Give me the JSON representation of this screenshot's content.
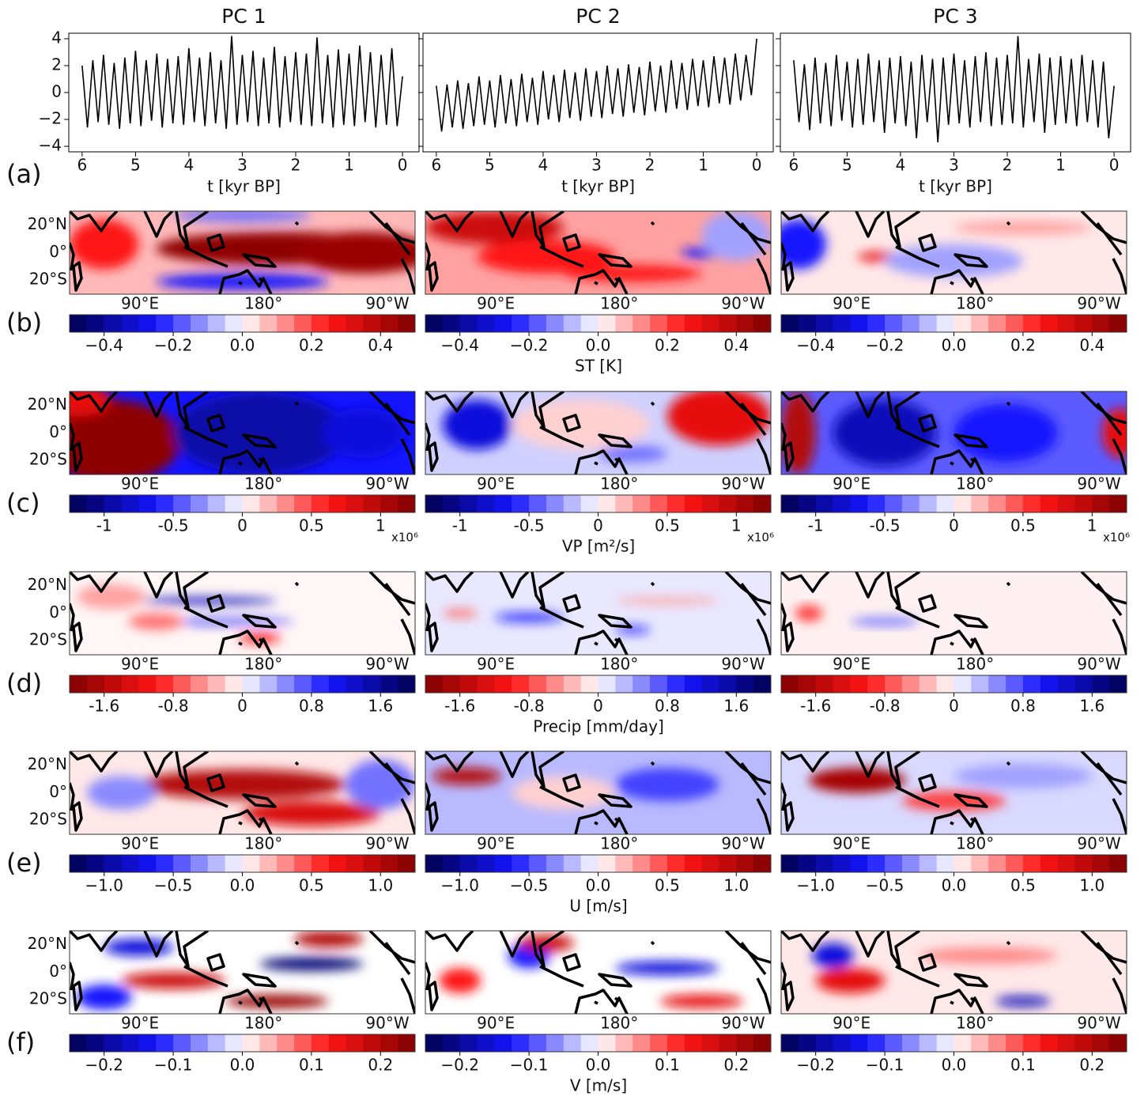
{
  "chart_data": [
    {
      "type": "line",
      "title": "PC 1",
      "xlabel": "t [kyr BP]",
      "color": "#000000",
      "x": [
        6.0,
        5.9,
        5.8,
        5.7,
        5.6,
        5.5,
        5.4,
        5.3,
        5.2,
        5.1,
        5.0,
        4.9,
        4.8,
        4.7,
        4.6,
        4.5,
        4.4,
        4.3,
        4.2,
        4.1,
        4.0,
        3.9,
        3.8,
        3.7,
        3.6,
        3.5,
        3.4,
        3.3,
        3.2,
        3.1,
        3.0,
        2.9,
        2.8,
        2.7,
        2.6,
        2.5,
        2.4,
        2.3,
        2.2,
        2.1,
        2.0,
        1.9,
        1.8,
        1.7,
        1.6,
        1.5,
        1.4,
        1.3,
        1.2,
        1.1,
        1.0,
        0.9,
        0.8,
        0.7,
        0.6,
        0.5,
        0.4,
        0.3,
        0.2,
        0.1,
        0.0
      ],
      "values": [
        2,
        -2.6,
        2.4,
        -2.2,
        2.8,
        -2.4,
        2.2,
        -2.7,
        2.6,
        -2.3,
        3.1,
        -2.5,
        2.4,
        -2.1,
        2.9,
        -2.6,
        2.5,
        -2.3,
        2.7,
        -2.4,
        3.3,
        -2.2,
        2.6,
        -2.5,
        3.0,
        -2.3,
        2.4,
        -2.7,
        4.2,
        -2.4,
        2.8,
        -2.2,
        3.1,
        -2.5,
        2.6,
        -2.3,
        3.4,
        -2.6,
        2.7,
        -2.2,
        3.0,
        -2.4,
        2.9,
        -2.5,
        4.1,
        -2.3,
        2.8,
        -2.6,
        3.2,
        -2.4,
        2.9,
        -2.5,
        3.5,
        -2.2,
        3.0,
        -2.6,
        2.8,
        -2.4,
        3.3,
        -2.5,
        1.2
      ],
      "xlim": [
        6.25,
        -0.31
      ],
      "xticks": [
        6,
        5,
        4,
        3,
        2,
        1,
        0
      ],
      "ylim": [
        -4.41,
        4.41
      ],
      "yticks": [
        {
          "value": -4,
          "label": "−4"
        },
        {
          "value": -2,
          "label": "−2"
        },
        0,
        2,
        4
      ]
    },
    {
      "type": "line",
      "title": "PC 2",
      "xlabel": "t [kyr BP]",
      "color": "#000000",
      "x": [
        6.0,
        5.9,
        5.8,
        5.7,
        5.6,
        5.5,
        5.4,
        5.3,
        5.2,
        5.1,
        5.0,
        4.9,
        4.8,
        4.7,
        4.6,
        4.5,
        4.4,
        4.3,
        4.2,
        4.1,
        4.0,
        3.9,
        3.8,
        3.7,
        3.6,
        3.5,
        3.4,
        3.3,
        3.2,
        3.1,
        3.0,
        2.9,
        2.8,
        2.7,
        2.6,
        2.5,
        2.4,
        2.3,
        2.2,
        2.1,
        2.0,
        1.9,
        1.8,
        1.7,
        1.6,
        1.5,
        1.4,
        1.3,
        1.2,
        1.1,
        1.0,
        0.9,
        0.8,
        0.7,
        0.6,
        0.5,
        0.4,
        0.3,
        0.2,
        0.1,
        0.0
      ],
      "values": [
        0.5,
        -2.9,
        0.6,
        -2.6,
        0.9,
        -2.7,
        0.7,
        -2.5,
        1.2,
        -2.4,
        0.9,
        -2.6,
        1.3,
        -2.3,
        1.0,
        -2.5,
        1.4,
        -2.2,
        1.1,
        -2.4,
        1.6,
        -2.0,
        1.3,
        -2.2,
        1.7,
        -1.9,
        1.5,
        -2.1,
        1.8,
        -1.8,
        1.6,
        -1.9,
        2.0,
        -1.6,
        1.8,
        -1.8,
        2.1,
        -1.5,
        1.9,
        -1.7,
        2.3,
        -1.4,
        2.0,
        -1.5,
        2.4,
        -1.2,
        2.2,
        -1.3,
        2.5,
        -1.0,
        2.4,
        -1.1,
        2.7,
        -0.8,
        2.6,
        -0.9,
        2.9,
        -0.6,
        2.8,
        -0.2,
        4.0
      ],
      "xlim": [
        6.25,
        -0.31
      ],
      "xticks": [
        6,
        5,
        4,
        3,
        2,
        1,
        0
      ],
      "ylim": [
        -4.41,
        4.41
      ],
      "yticks": [
        -4,
        -2,
        0,
        2,
        4
      ]
    },
    {
      "type": "line",
      "title": "PC 3",
      "xlabel": "t [kyr BP]",
      "color": "#000000",
      "x": [
        6.0,
        5.9,
        5.8,
        5.7,
        5.6,
        5.5,
        5.4,
        5.3,
        5.2,
        5.1,
        5.0,
        4.9,
        4.8,
        4.7,
        4.6,
        4.5,
        4.4,
        4.3,
        4.2,
        4.1,
        4.0,
        3.9,
        3.8,
        3.7,
        3.6,
        3.5,
        3.4,
        3.3,
        3.2,
        3.1,
        3.0,
        2.9,
        2.8,
        2.7,
        2.6,
        2.5,
        2.4,
        2.3,
        2.2,
        2.1,
        2.0,
        1.9,
        1.8,
        1.7,
        1.6,
        1.5,
        1.4,
        1.3,
        1.2,
        1.1,
        1.0,
        0.9,
        0.8,
        0.7,
        0.6,
        0.5,
        0.4,
        0.3,
        0.2,
        0.1,
        0.0
      ],
      "values": [
        2.4,
        -2.2,
        2.1,
        -2.8,
        2.6,
        -2.3,
        2.2,
        -2.5,
        2.8,
        -2.1,
        2.3,
        -2.6,
        2.5,
        -2.4,
        2.9,
        -2.2,
        2.4,
        -3.0,
        2.6,
        -2.3,
        2.7,
        -2.5,
        2.3,
        -3.4,
        2.8,
        -2.2,
        2.5,
        -3.7,
        2.6,
        -2.4,
        2.9,
        -2.3,
        2.4,
        -2.6,
        2.7,
        -2.2,
        3.0,
        -2.5,
        2.6,
        -2.4,
        2.8,
        -2.3,
        4.2,
        -2.6,
        2.5,
        -2.2,
        2.9,
        -3.0,
        2.6,
        -2.4,
        2.7,
        -2.3,
        2.5,
        -2.5,
        2.8,
        -2.2,
        2.4,
        -2.6,
        2.3,
        -3.4,
        0.5
      ],
      "xlim": [
        6.25,
        -0.31
      ],
      "xticks": [
        6,
        5,
        4,
        3,
        2,
        1,
        0
      ],
      "ylim": [
        -4.41,
        4.41
      ],
      "yticks": [
        -4,
        -2,
        0,
        2,
        4
      ]
    }
  ],
  "row_labels": [
    "(a)",
    "(b)",
    "(c)",
    "(d)",
    "(e)",
    "(f)"
  ],
  "map_axes": {
    "lat_labels": [
      "20°N",
      "0°",
      "20°S"
    ],
    "lon_labels": [
      "90°E",
      "180°",
      "90°W"
    ]
  },
  "colorbars": [
    {
      "label": "ST [K]",
      "clim": [
        -0.5,
        0.5
      ],
      "reversed": false,
      "ticks": [
        {
          "value": -0.4,
          "label": "−0.4"
        },
        {
          "value": -0.2,
          "label": "−0.2"
        },
        {
          "value": 0,
          "label": "0.0"
        },
        0.2,
        0.4
      ]
    },
    {
      "label": "VP [m²/s]",
      "offset_text": "x10⁶",
      "clim": [
        -1.25,
        1.25
      ],
      "reversed": false,
      "ticks": [
        -1,
        -0.5,
        0,
        0.5,
        1
      ]
    },
    {
      "label": "Precip [mm/day]",
      "clim": [
        -2,
        2
      ],
      "reversed": true,
      "ticks": [
        -1.6,
        -0.8,
        0,
        0.8,
        1.6
      ]
    },
    {
      "label": "U [m/s]",
      "clim": [
        -1.25,
        1.25
      ],
      "reversed": false,
      "ticks": [
        {
          "value": -1,
          "label": "−1.0"
        },
        {
          "value": -0.5,
          "label": "−0.5"
        },
        {
          "value": 0,
          "label": "0.0"
        },
        0.5,
        {
          "value": 1,
          "label": "1.0"
        }
      ]
    },
    {
      "label": "V [m/s]",
      "clim": [
        -0.25,
        0.25
      ],
      "reversed": false,
      "ticks": [
        {
          "value": -0.2,
          "label": "−0.2"
        },
        {
          "value": -0.1,
          "label": "−0.1"
        },
        {
          "value": 0,
          "label": "0.0"
        },
        0.1,
        0.2
      ]
    }
  ]
}
